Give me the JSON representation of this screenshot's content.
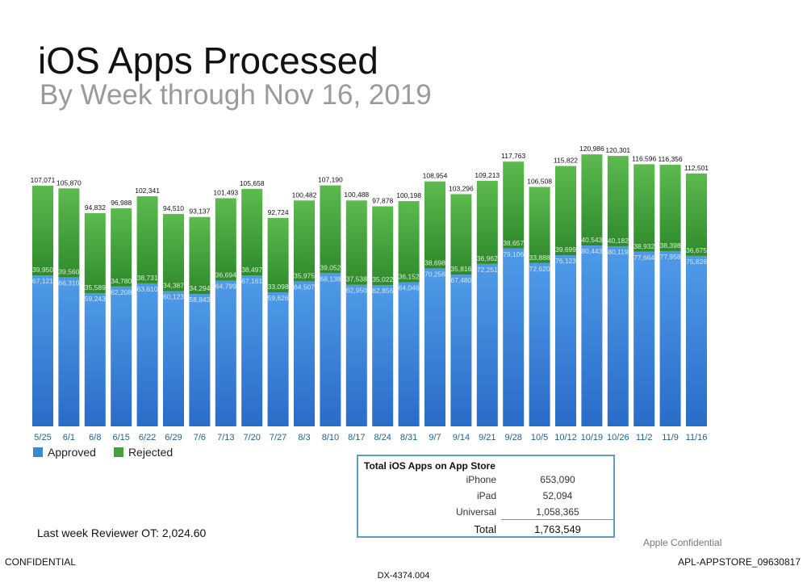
{
  "header": {
    "title": "iOS Apps Processed",
    "subtitle": "By Week through Nov 16, 2019"
  },
  "chart_data": {
    "type": "bar",
    "stacked": true,
    "title": "iOS Apps Processed",
    "subtitle": "By Week through Nov 16, 2019",
    "categories": [
      "5/25",
      "6/1",
      "6/8",
      "6/15",
      "6/22",
      "6/29",
      "7/6",
      "7/13",
      "7/20",
      "7/27",
      "8/3",
      "8/10",
      "8/17",
      "8/24",
      "8/31",
      "9/7",
      "9/14",
      "9/21",
      "9/28",
      "10/5",
      "10/12",
      "10/19",
      "10/26",
      "11/2",
      "11/9",
      "11/16"
    ],
    "series": [
      {
        "name": "Approved",
        "color": "#3a87d6",
        "values": [
          67121,
          66310,
          59243,
          62208,
          63610,
          60123,
          58843,
          64799,
          67161,
          59626,
          64507,
          68138,
          62950,
          62856,
          64046,
          70256,
          67480,
          72251,
          79106,
          72620,
          76123,
          80443,
          80119,
          77664,
          77958,
          75826
        ],
        "labels": [
          "67,121",
          "66,310",
          "59,243",
          "62,208",
          "63,610",
          "60,123",
          "58,843",
          "64,799",
          "67,161",
          "59,626",
          "64,507",
          "68,138",
          "62,950",
          "62,856",
          "64,046",
          "70,256",
          "67,480",
          "72,251",
          "79,106",
          "72,620",
          "76,123",
          "80,443",
          "80,119",
          "77,664",
          "77,958",
          "75,826"
        ]
      },
      {
        "name": "Rejected",
        "color": "#46a13c",
        "values": [
          39950,
          39560,
          35589,
          34780,
          38731,
          34387,
          34294,
          36694,
          38497,
          33098,
          35975,
          39052,
          37538,
          35022,
          36152,
          38698,
          35816,
          36962,
          38657,
          33888,
          39699,
          40543,
          40182,
          38932,
          38398,
          36675
        ],
        "labels": [
          "39,950",
          "39,560",
          "35,589",
          "34,780",
          "38,731",
          "34,387",
          "34,294",
          "36,694",
          "38,497",
          "33,098",
          "35,975",
          "39,052",
          "37,538",
          "35,022",
          "36,152",
          "38,698",
          "35,816",
          "36,962",
          "38,657",
          "33,888",
          "39,699",
          "40,543",
          "40,182",
          "38,932",
          "38,398",
          "36,675"
        ]
      }
    ],
    "totals": [
      107071,
      105870,
      94832,
      96988,
      102341,
      94510,
      93137,
      101493,
      105658,
      92724,
      100482,
      107190,
      100488,
      97878,
      100198,
      108954,
      103296,
      109213,
      117763,
      106508,
      115822,
      120986,
      120301,
      116596,
      116356,
      112501
    ],
    "total_labels": [
      "107,071",
      "105,870",
      "94,832",
      "96,988",
      "102,341",
      "94,510",
      "93,137",
      "101,493",
      "105,658",
      "92,724",
      "100,482",
      "107,190",
      "100,488",
      "97,878",
      "100,198",
      "108,954",
      "103,296",
      "109,213",
      "117,763",
      "106,508",
      "115,822",
      "120,986",
      "120,301",
      "116,596",
      "116,356",
      "112,501"
    ],
    "ylim": [
      0,
      125000
    ],
    "grid": false,
    "legend_position": "bottom-left",
    "xlabel": "",
    "ylabel": ""
  },
  "legend": {
    "approved": "Approved",
    "rejected": "Rejected",
    "approved_color": "#3a87d6",
    "rejected_color": "#46a13c"
  },
  "totals_table": {
    "heading": "Total iOS Apps on App Store",
    "rows": [
      {
        "label": "iPhone",
        "value": "653,090"
      },
      {
        "label": "iPad",
        "value": "52,094"
      },
      {
        "label": "Universal",
        "value": "1,058,365"
      }
    ],
    "total": {
      "label": "Total",
      "value": "1,763,549"
    }
  },
  "footer": {
    "overtime": "Last week Reviewer OT: 2,024.60",
    "apple_confidential": "Apple Confidential",
    "confidential": "CONFIDENTIAL",
    "bates": "APL-APPSTORE_09630817",
    "exhibit": "DX-4374.004"
  }
}
